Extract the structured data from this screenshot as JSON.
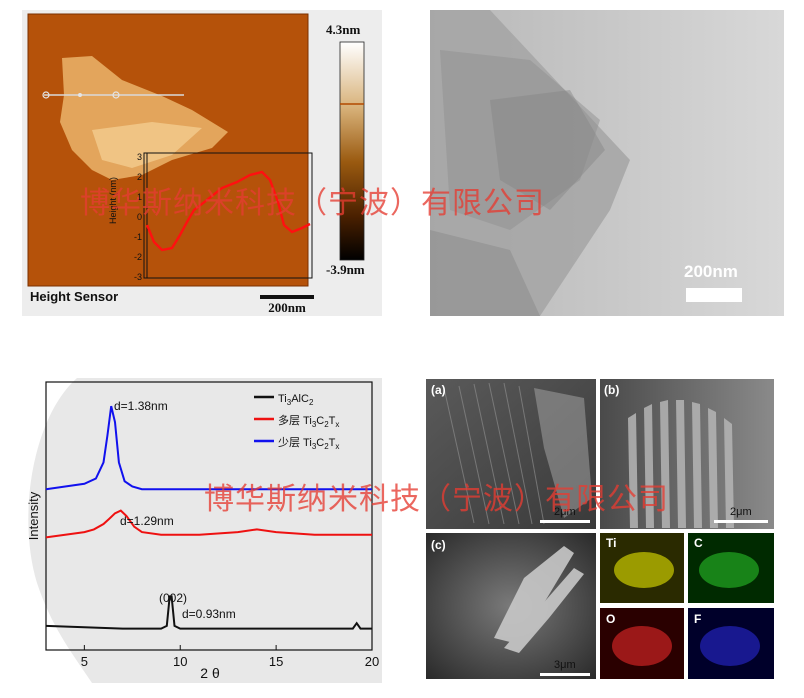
{
  "afm": {
    "caption": "Height Sensor",
    "colorbar_max": "4.3nm",
    "colorbar_min": "-3.9nm",
    "scale_bar": "200nm",
    "profile_axis_label": "Height (nm)",
    "profile_ticks": [
      "3",
      "2",
      "1",
      "0",
      "-1",
      "-2",
      "-3"
    ]
  },
  "tem": {
    "scale_bar": "200nm"
  },
  "xrd": {
    "xlabel": "2 θ",
    "ylabel": "Intensity",
    "peak_label_002": "(002)",
    "labels": {
      "d1": "d=1.38nm",
      "d2": "d=1.29nm",
      "d3": "d=0.93nm"
    },
    "legend": [
      {
        "prefix": "",
        "name": "Ti3AlC2",
        "color": "#111111"
      },
      {
        "prefix": "多层",
        "name": "Ti3C2Tx",
        "color": "#ee1111"
      },
      {
        "prefix": "少层",
        "name": "Ti3C2Tx",
        "color": "#1111ee"
      }
    ]
  },
  "chart_data": {
    "type": "line",
    "title": "",
    "xlabel": "2 θ",
    "ylabel": "Intensity",
    "xlim": [
      3,
      20
    ],
    "x_ticks": [
      5,
      10,
      15,
      20
    ],
    "grid": false,
    "legend_position": "top-right",
    "series": [
      {
        "name": "Ti3AlC2",
        "color": "#111111",
        "x": [
          3,
          5,
          7,
          9,
          9.3,
          9.45,
          9.55,
          9.7,
          10,
          12,
          14,
          16,
          18,
          19,
          19.2,
          19.4,
          20
        ],
        "y": [
          0.09,
          0.085,
          0.08,
          0.08,
          0.09,
          0.2,
          0.2,
          0.09,
          0.08,
          0.08,
          0.08,
          0.08,
          0.08,
          0.08,
          0.1,
          0.08,
          0.08
        ]
      },
      {
        "name": "多层 Ti3C2Tx",
        "color": "#ee1111",
        "x": [
          3,
          4,
          5,
          5.5,
          6,
          6.3,
          6.6,
          6.9,
          7.2,
          7.6,
          8,
          9,
          11,
          13,
          14,
          15,
          17,
          20
        ],
        "y": [
          0.42,
          0.43,
          0.44,
          0.45,
          0.47,
          0.49,
          0.51,
          0.52,
          0.5,
          0.46,
          0.44,
          0.43,
          0.43,
          0.44,
          0.45,
          0.44,
          0.43,
          0.43
        ]
      },
      {
        "name": "少层 Ti3C2Tx",
        "color": "#1111ee",
        "x": [
          3,
          4,
          5,
          5.6,
          6,
          6.2,
          6.4,
          6.6,
          6.8,
          7.1,
          7.5,
          8,
          9,
          10,
          12,
          14,
          16,
          18,
          20
        ],
        "y": [
          0.6,
          0.61,
          0.62,
          0.64,
          0.7,
          0.8,
          0.91,
          0.85,
          0.7,
          0.63,
          0.61,
          0.6,
          0.6,
          0.6,
          0.6,
          0.6,
          0.6,
          0.6,
          0.6
        ]
      }
    ],
    "annotations": [
      {
        "text": "d=1.38nm",
        "x": 6.4
      },
      {
        "text": "d=1.29nm",
        "x": 6.9
      },
      {
        "text": "(002)",
        "x": 9.5
      },
      {
        "text": "d=0.93nm",
        "x": 9.5
      }
    ]
  },
  "sem": {
    "labels": [
      "(a)",
      "(b)",
      "(c)"
    ],
    "scales": [
      "2μm",
      "2μm",
      "3μm"
    ],
    "elements": [
      "Ti",
      "C",
      "O",
      "F"
    ]
  },
  "watermark": "博华斯纳米科技（宁波）有限公司"
}
